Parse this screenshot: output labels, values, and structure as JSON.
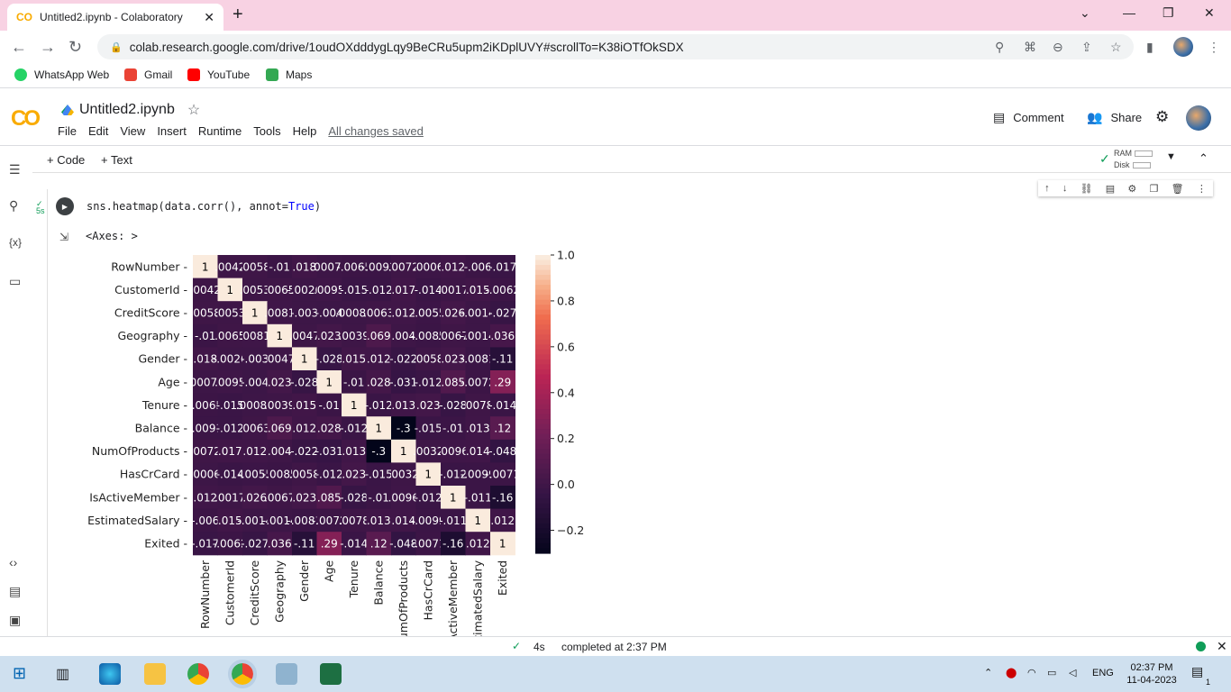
{
  "browser": {
    "tab_title": "Untitled2.ipynb - Colaboratory",
    "tab_favicon": "CO",
    "url": "colab.research.google.com/drive/1oudOXdddygLqy9BeCRu5upm2iKDplUVY#scrollTo=K38iOTfOkSDX"
  },
  "bookmarks": [
    {
      "label": "WhatsApp Web",
      "color": "#25d366"
    },
    {
      "label": "Gmail",
      "color": "#ea4335"
    },
    {
      "label": "YouTube",
      "color": "#ff0000"
    },
    {
      "label": "Maps",
      "color": "#34a853"
    }
  ],
  "colab": {
    "logo": "CO",
    "notebook_title": "Untitled2.ipynb",
    "menu": [
      "File",
      "Edit",
      "View",
      "Insert",
      "Runtime",
      "Tools",
      "Help"
    ],
    "saved_status": "All changes saved",
    "comment_label": "Comment",
    "share_label": "Share",
    "add_code": "+ Code",
    "add_text": "+ Text",
    "ram_label": "RAM",
    "disk_label": "Disk"
  },
  "cell": {
    "exec_time": "5s",
    "code_pre": "sns.heatmap(data.corr(), annot=",
    "code_kw": "True",
    "code_post": ")",
    "output_text": "<Axes: >"
  },
  "status": {
    "duration": "4s",
    "completed": "completed at 2:37 PM"
  },
  "taskbar": {
    "language": "ENG",
    "time": "02:37 PM",
    "date": "11-04-2023",
    "notif_count": "1"
  },
  "chart_data": {
    "type": "heatmap",
    "labels": [
      "RowNumber",
      "CustomerId",
      "CreditScore",
      "Geography",
      "Gender",
      "Age",
      "Tenure",
      "Balance",
      "NumOfProducts",
      "HasCrCard",
      "IsActiveMember",
      "EstimatedSalary",
      "Exited"
    ],
    "matrix": [
      [
        1,
        0.0042,
        0.0058,
        -0.01,
        0.018,
        0.00078,
        -0.0065,
        -0.0091,
        0.0072,
        0.0006,
        0.012,
        -0.006,
        -0.017
      ],
      [
        0.0042,
        1,
        0.0053,
        0.0065,
        -0.0026,
        0.0095,
        -0.015,
        -0.012,
        0.017,
        -0.014,
        0.0017,
        0.015,
        -0.0062
      ],
      [
        0.0058,
        0.0053,
        1,
        0.0081,
        -0.003,
        -0.004,
        0.00084,
        0.0063,
        0.012,
        -0.0055,
        0.026,
        -0.0014,
        -0.027
      ],
      [
        -0.01,
        0.0065,
        0.0081,
        1,
        0.0047,
        0.023,
        0.0039,
        0.069,
        0.004,
        -0.0085,
        0.0067,
        -0.0014,
        0.036
      ],
      [
        0.018,
        -0.0026,
        -0.003,
        0.0047,
        1,
        -0.028,
        0.015,
        0.012,
        -0.022,
        0.0058,
        0.023,
        -0.0081,
        -0.11
      ],
      [
        0.00078,
        0.0095,
        -0.004,
        0.023,
        -0.028,
        1,
        -0.01,
        0.028,
        -0.031,
        -0.012,
        0.085,
        -0.0072,
        0.29
      ],
      [
        -0.0065,
        -0.015,
        0.00084,
        0.0039,
        0.015,
        -0.01,
        1,
        -0.012,
        0.013,
        0.023,
        -0.028,
        0.0078,
        -0.014
      ],
      [
        -0.0091,
        -0.012,
        0.0063,
        0.069,
        0.012,
        0.028,
        -0.012,
        1,
        -0.3,
        -0.015,
        -0.01,
        0.013,
        0.12
      ],
      [
        0.0072,
        0.017,
        0.012,
        0.004,
        -0.022,
        -0.031,
        0.013,
        -0.3,
        1,
        0.0032,
        0.0096,
        0.014,
        -0.048
      ],
      [
        0.0006,
        -0.014,
        -0.0055,
        -0.0085,
        0.0058,
        -0.012,
        0.023,
        -0.015,
        0.0032,
        1,
        -0.012,
        -0.0099,
        -0.0071
      ],
      [
        0.012,
        0.0017,
        0.026,
        0.0067,
        0.023,
        0.085,
        -0.028,
        -0.01,
        0.0096,
        -0.012,
        1,
        -0.011,
        -0.16
      ],
      [
        -0.006,
        0.015,
        -0.0014,
        -0.0014,
        -0.0081,
        -0.0072,
        0.0078,
        0.013,
        0.014,
        -0.0099,
        -0.011,
        1,
        0.012
      ],
      [
        -0.017,
        -0.0062,
        -0.027,
        0.036,
        -0.11,
        0.29,
        -0.014,
        0.12,
        -0.048,
        -0.0071,
        -0.16,
        0.012,
        1
      ]
    ],
    "colorbar_ticks": [
      1.0,
      0.8,
      0.6,
      0.4,
      0.2,
      0.0,
      -0.2
    ],
    "vmin": -0.3,
    "vmax": 1.0,
    "colormap": "rocket"
  }
}
